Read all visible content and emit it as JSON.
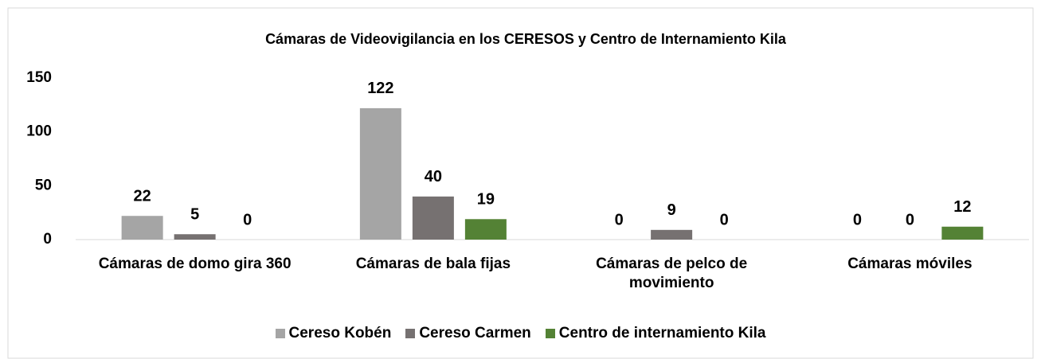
{
  "chart_data": {
    "type": "bar",
    "title": "Cámaras de Videovigilancia en los CERESOS y Centro de Internamiento Kila",
    "categories": [
      "Cámaras de domo gira 360",
      "Cámaras de bala fijas",
      "Cámaras de pelco de movimiento",
      "Cámaras móviles"
    ],
    "series": [
      {
        "name": "Cereso Kobén",
        "color": "#a5a5a5",
        "values": [
          22,
          122,
          0,
          0
        ]
      },
      {
        "name": "Cereso Carmen",
        "color": "#767171",
        "values": [
          5,
          40,
          9,
          0
        ]
      },
      {
        "name": "Centro de internamiento Kila",
        "color": "#548235",
        "values": [
          0,
          19,
          0,
          12
        ]
      }
    ],
    "ylim": [
      0,
      150
    ],
    "yticks": [
      0,
      50,
      100,
      150
    ],
    "grid": false,
    "legend": "bottom"
  }
}
